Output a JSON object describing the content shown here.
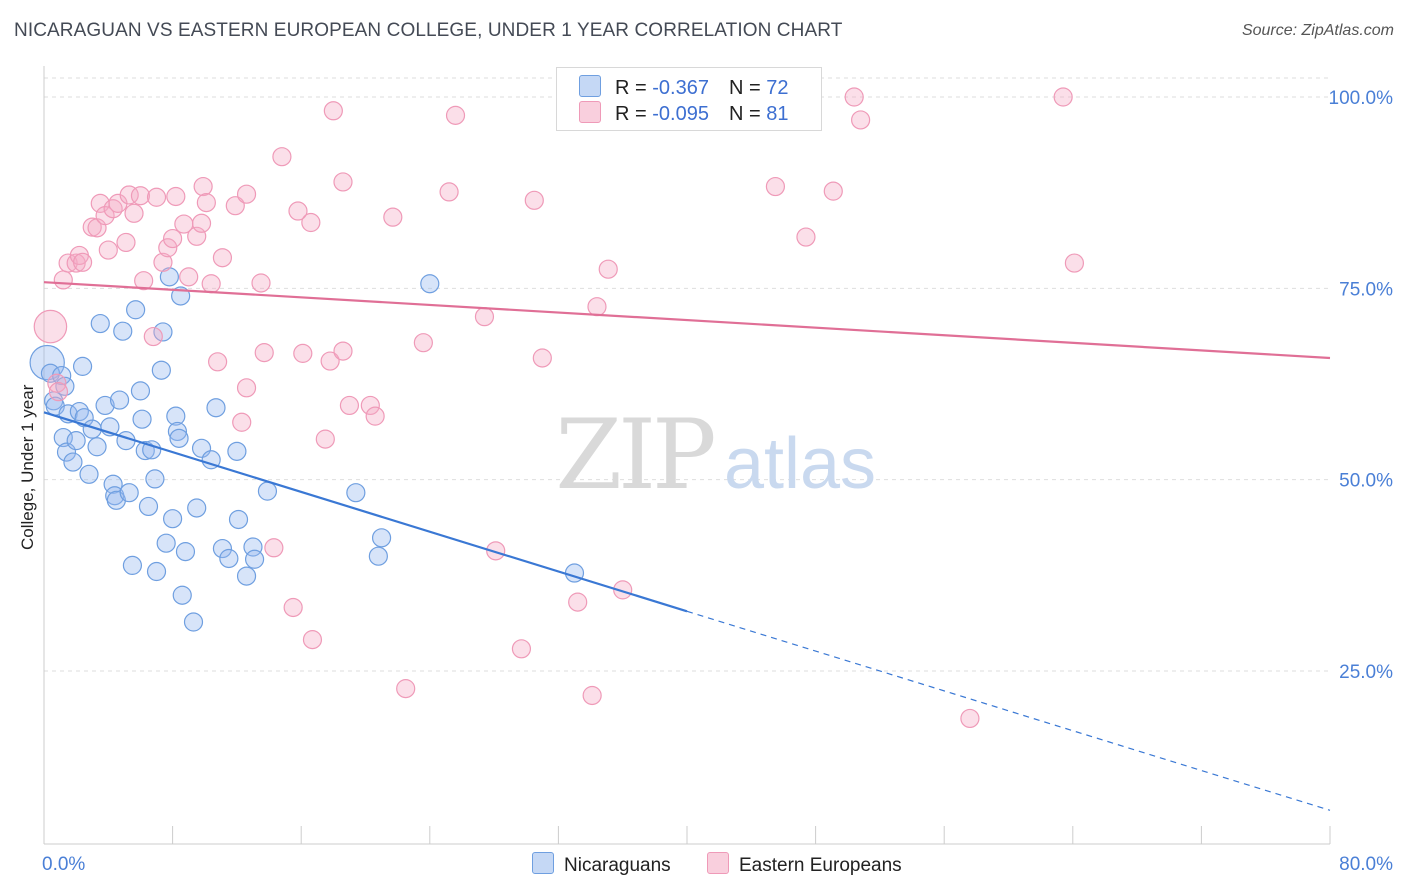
{
  "header": {
    "title": "NICARAGUAN VS EASTERN EUROPEAN COLLEGE, UNDER 1 YEAR CORRELATION CHART",
    "source": "Source: ZipAtlas.com"
  },
  "watermark": {
    "zip": "ZIP",
    "atlas": "atlas"
  },
  "legend": {
    "r_label": "R =",
    "n_label": "N =",
    "rows": [
      {
        "r": "-0.367",
        "n": "72"
      },
      {
        "r": "-0.095",
        "n": "81"
      }
    ]
  },
  "chart_data": {
    "type": "scatter",
    "title": "NICARAGUAN VS EASTERN EUROPEAN COLLEGE, UNDER 1 YEAR CORRELATION CHART",
    "xlabel": "",
    "ylabel": "College, Under 1 year",
    "xlim": [
      0,
      80
    ],
    "ylim": [
      0,
      105
    ],
    "x_tick_labels": [
      "0.0%",
      "80.0%"
    ],
    "y_ticks": [
      25,
      50,
      75,
      100
    ],
    "y_tick_labels": [
      "25.0%",
      "50.0%",
      "75.0%",
      "100.0%"
    ],
    "grid": true,
    "legend_position": "top-center",
    "colors": {
      "blue": "#6f9fe0",
      "pink": "#ef9ab8",
      "blue_line": "#3a78d4",
      "pink_line": "#e06f96"
    },
    "series": [
      {
        "name": "Nicaraguans",
        "color": "#6f9fe0",
        "r": -0.367,
        "n": 72,
        "trend": {
          "x0": 0,
          "y0": 58.8,
          "x1": 40,
          "y1": 32.8,
          "dash_to_x": 80,
          "dash_to_y": 6.8
        },
        "points": [
          [
            0.2,
            65.3,
            1.9
          ],
          [
            0.4,
            63.9,
            1
          ],
          [
            0.6,
            60.3,
            1
          ],
          [
            0.7,
            59.6,
            1
          ],
          [
            1.1,
            63.6,
            1
          ],
          [
            1.3,
            62.2,
            1
          ],
          [
            1.5,
            58.6,
            1
          ],
          [
            1.2,
            55.5,
            1
          ],
          [
            1.4,
            53.6,
            1
          ],
          [
            1.8,
            52.3,
            1
          ],
          [
            2.0,
            55.1,
            1
          ],
          [
            2.2,
            58.9,
            1
          ],
          [
            2.4,
            64.8,
            1
          ],
          [
            2.5,
            58.1,
            1
          ],
          [
            2.8,
            50.7,
            1
          ],
          [
            3.0,
            56.6,
            1
          ],
          [
            3.3,
            54.3,
            1
          ],
          [
            3.5,
            70.4,
            1
          ],
          [
            3.8,
            59.7,
            1
          ],
          [
            4.1,
            56.9,
            1
          ],
          [
            4.3,
            49.4,
            1
          ],
          [
            4.4,
            47.9,
            1
          ],
          [
            4.5,
            47.3,
            1
          ],
          [
            4.7,
            60.4,
            1
          ],
          [
            4.9,
            69.4,
            1
          ],
          [
            5.1,
            55.1,
            1
          ],
          [
            5.3,
            48.3,
            1
          ],
          [
            5.5,
            38.8,
            1
          ],
          [
            5.7,
            72.2,
            1
          ],
          [
            6.0,
            61.6,
            1
          ],
          [
            6.1,
            57.9,
            1
          ],
          [
            6.3,
            53.8,
            1
          ],
          [
            6.5,
            46.5,
            1
          ],
          [
            6.7,
            53.9,
            1
          ],
          [
            6.9,
            50.1,
            1
          ],
          [
            7.0,
            38.0,
            1
          ],
          [
            7.3,
            64.3,
            1
          ],
          [
            7.4,
            69.3,
            1
          ],
          [
            7.6,
            41.7,
            1
          ],
          [
            7.8,
            76.5,
            1
          ],
          [
            8.0,
            44.9,
            1
          ],
          [
            8.2,
            58.3,
            1
          ],
          [
            8.3,
            56.3,
            1
          ],
          [
            8.4,
            55.4,
            1
          ],
          [
            8.5,
            74.0,
            1
          ],
          [
            8.6,
            34.9,
            1
          ],
          [
            8.8,
            40.6,
            1
          ],
          [
            9.3,
            31.4,
            1
          ],
          [
            9.5,
            46.3,
            1
          ],
          [
            9.8,
            54.1,
            1
          ],
          [
            10.4,
            52.6,
            1
          ],
          [
            10.7,
            59.4,
            1
          ],
          [
            11.1,
            41.0,
            1
          ],
          [
            11.5,
            39.7,
            1
          ],
          [
            12.0,
            53.7,
            1
          ],
          [
            12.1,
            44.8,
            1
          ],
          [
            12.6,
            37.4,
            1
          ],
          [
            13.0,
            41.2,
            1
          ],
          [
            13.1,
            39.6,
            1
          ],
          [
            13.9,
            48.5,
            1
          ],
          [
            19.4,
            48.3,
            1
          ],
          [
            20.8,
            40.0,
            1
          ],
          [
            21.0,
            42.4,
            1
          ],
          [
            24.0,
            75.6,
            1
          ],
          [
            33.0,
            37.8,
            1
          ]
        ]
      },
      {
        "name": "Eastern Europeans",
        "color": "#ef9ab8",
        "r": -0.095,
        "n": 81,
        "trend": {
          "x0": 0,
          "y0": 75.8,
          "x1": 80,
          "y1": 65.9
        },
        "points": [
          [
            0.4,
            70.0,
            1.8
          ],
          [
            0.8,
            62.6,
            1
          ],
          [
            0.9,
            61.5,
            1
          ],
          [
            1.2,
            76.1,
            1
          ],
          [
            1.5,
            78.3,
            1
          ],
          [
            2.0,
            78.3,
            1
          ],
          [
            2.2,
            79.3,
            1
          ],
          [
            2.4,
            78.4,
            1
          ],
          [
            3.0,
            83.0,
            1
          ],
          [
            3.3,
            82.9,
            1
          ],
          [
            3.5,
            86.1,
            1
          ],
          [
            3.8,
            84.5,
            1
          ],
          [
            4.0,
            80.0,
            1
          ],
          [
            4.3,
            85.4,
            1
          ],
          [
            4.6,
            86.1,
            1
          ],
          [
            5.1,
            81.0,
            1
          ],
          [
            5.3,
            87.2,
            1
          ],
          [
            5.6,
            84.8,
            1
          ],
          [
            6.0,
            87.1,
            1
          ],
          [
            6.2,
            76.0,
            1
          ],
          [
            6.8,
            68.7,
            1
          ],
          [
            7.0,
            86.9,
            1
          ],
          [
            7.4,
            78.4,
            1
          ],
          [
            7.7,
            80.3,
            1
          ],
          [
            8.0,
            81.5,
            1
          ],
          [
            8.2,
            87.0,
            1
          ],
          [
            8.7,
            83.4,
            1
          ],
          [
            9.0,
            76.5,
            1
          ],
          [
            9.5,
            81.8,
            1
          ],
          [
            9.8,
            83.5,
            1
          ],
          [
            9.9,
            88.3,
            1
          ],
          [
            10.1,
            86.2,
            1
          ],
          [
            10.4,
            75.6,
            1
          ],
          [
            10.8,
            65.4,
            1
          ],
          [
            11.1,
            79.0,
            1
          ],
          [
            11.9,
            85.8,
            1
          ],
          [
            12.3,
            57.5,
            1
          ],
          [
            12.6,
            87.3,
            1
          ],
          [
            12.6,
            62.0,
            1
          ],
          [
            13.5,
            75.7,
            1
          ],
          [
            13.7,
            66.6,
            1
          ],
          [
            14.3,
            41.1,
            1
          ],
          [
            14.8,
            92.2,
            1
          ],
          [
            15.5,
            33.3,
            1
          ],
          [
            15.8,
            85.1,
            1
          ],
          [
            16.1,
            66.5,
            1
          ],
          [
            16.6,
            83.6,
            1
          ],
          [
            16.7,
            29.1,
            1
          ],
          [
            17.5,
            55.3,
            1
          ],
          [
            17.8,
            65.5,
            1
          ],
          [
            18.0,
            98.2,
            1
          ],
          [
            18.6,
            66.8,
            1
          ],
          [
            18.6,
            88.9,
            1
          ],
          [
            19.0,
            59.7,
            1
          ],
          [
            20.3,
            59.7,
            1
          ],
          [
            20.6,
            58.3,
            1
          ],
          [
            21.7,
            84.3,
            1
          ],
          [
            22.5,
            22.7,
            1
          ],
          [
            23.6,
            67.9,
            1
          ],
          [
            25.2,
            87.6,
            1
          ],
          [
            25.6,
            97.6,
            1
          ],
          [
            27.4,
            71.3,
            1
          ],
          [
            28.1,
            40.7,
            1
          ],
          [
            29.7,
            27.9,
            1
          ],
          [
            30.5,
            86.5,
            1
          ],
          [
            31.0,
            65.9,
            1
          ],
          [
            33.2,
            34.0,
            1
          ],
          [
            34.1,
            21.8,
            1
          ],
          [
            34.4,
            72.6,
            1
          ],
          [
            35.1,
            77.5,
            1
          ],
          [
            36.0,
            35.6,
            1
          ],
          [
            39.9,
            100.0,
            1
          ],
          [
            45.5,
            88.3,
            1
          ],
          [
            47.4,
            81.7,
            1
          ],
          [
            49.1,
            87.7,
            1
          ],
          [
            50.4,
            100.0,
            1
          ],
          [
            50.8,
            97.0,
            1
          ],
          [
            57.6,
            18.8,
            1
          ],
          [
            63.4,
            100.0,
            1
          ],
          [
            64.1,
            78.3,
            1
          ]
        ]
      }
    ]
  }
}
